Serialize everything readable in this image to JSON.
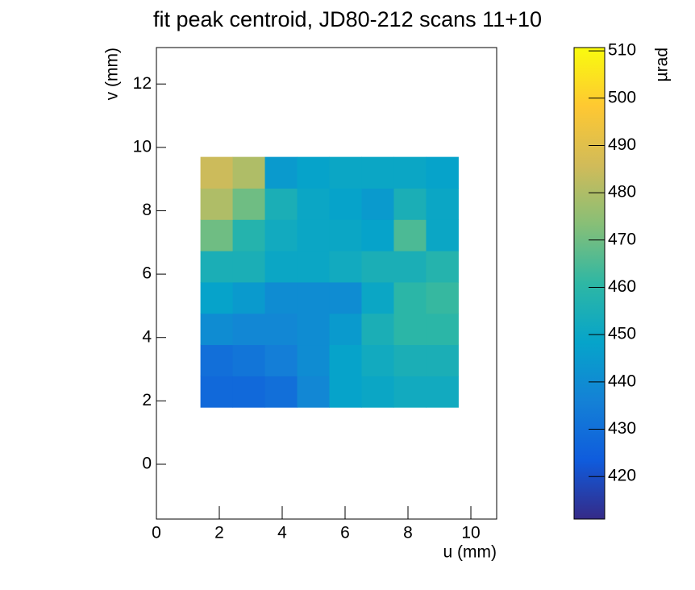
{
  "chart_data": {
    "type": "heatmap",
    "title": "fit peak centroid, JD80-212 scans 11+10",
    "xlabel": "u (mm)",
    "ylabel": "v (mm)",
    "zlabel": "µrad",
    "xlim": [
      0,
      10.82
    ],
    "ylim": [
      -1.73,
      13.15
    ],
    "zlim": [
      411,
      510.7
    ],
    "xticks": [
      0,
      2,
      4,
      6,
      8,
      10
    ],
    "yticks": [
      0,
      2,
      4,
      6,
      8,
      10,
      12
    ],
    "zticks": [
      420,
      430,
      440,
      450,
      460,
      470,
      480,
      490,
      500,
      510
    ],
    "xbins": [
      1.4,
      2.425,
      3.45,
      4.475,
      5.5,
      6.525,
      7.55,
      8.575,
      9.6
    ],
    "ybins": [
      1.8,
      2.7875,
      3.775,
      4.7625,
      5.75,
      6.7375,
      7.725,
      8.7125,
      9.7
    ],
    "z": [
      [
        428,
        428,
        430,
        438,
        448,
        450,
        452,
        452
      ],
      [
        430,
        432,
        435,
        440,
        448,
        452,
        455,
        455
      ],
      [
        440,
        438,
        438,
        440,
        445,
        455,
        460,
        460
      ],
      [
        448,
        445,
        440,
        440,
        440,
        450,
        460,
        462
      ],
      [
        455,
        455,
        450,
        450,
        452,
        455,
        455,
        458
      ],
      [
        470,
        458,
        452,
        450,
        450,
        448,
        465,
        450
      ],
      [
        480,
        470,
        455,
        450,
        448,
        445,
        455,
        450
      ],
      [
        485,
        480,
        445,
        448,
        450,
        450,
        450,
        448
      ]
    ],
    "colorscale": [
      "#352a87",
      "#0f5cdd",
      "#1481d6",
      "#06a4ca",
      "#2eb7a4",
      "#87bf77",
      "#d1bb59",
      "#fec832",
      "#f9fb0e"
    ]
  }
}
